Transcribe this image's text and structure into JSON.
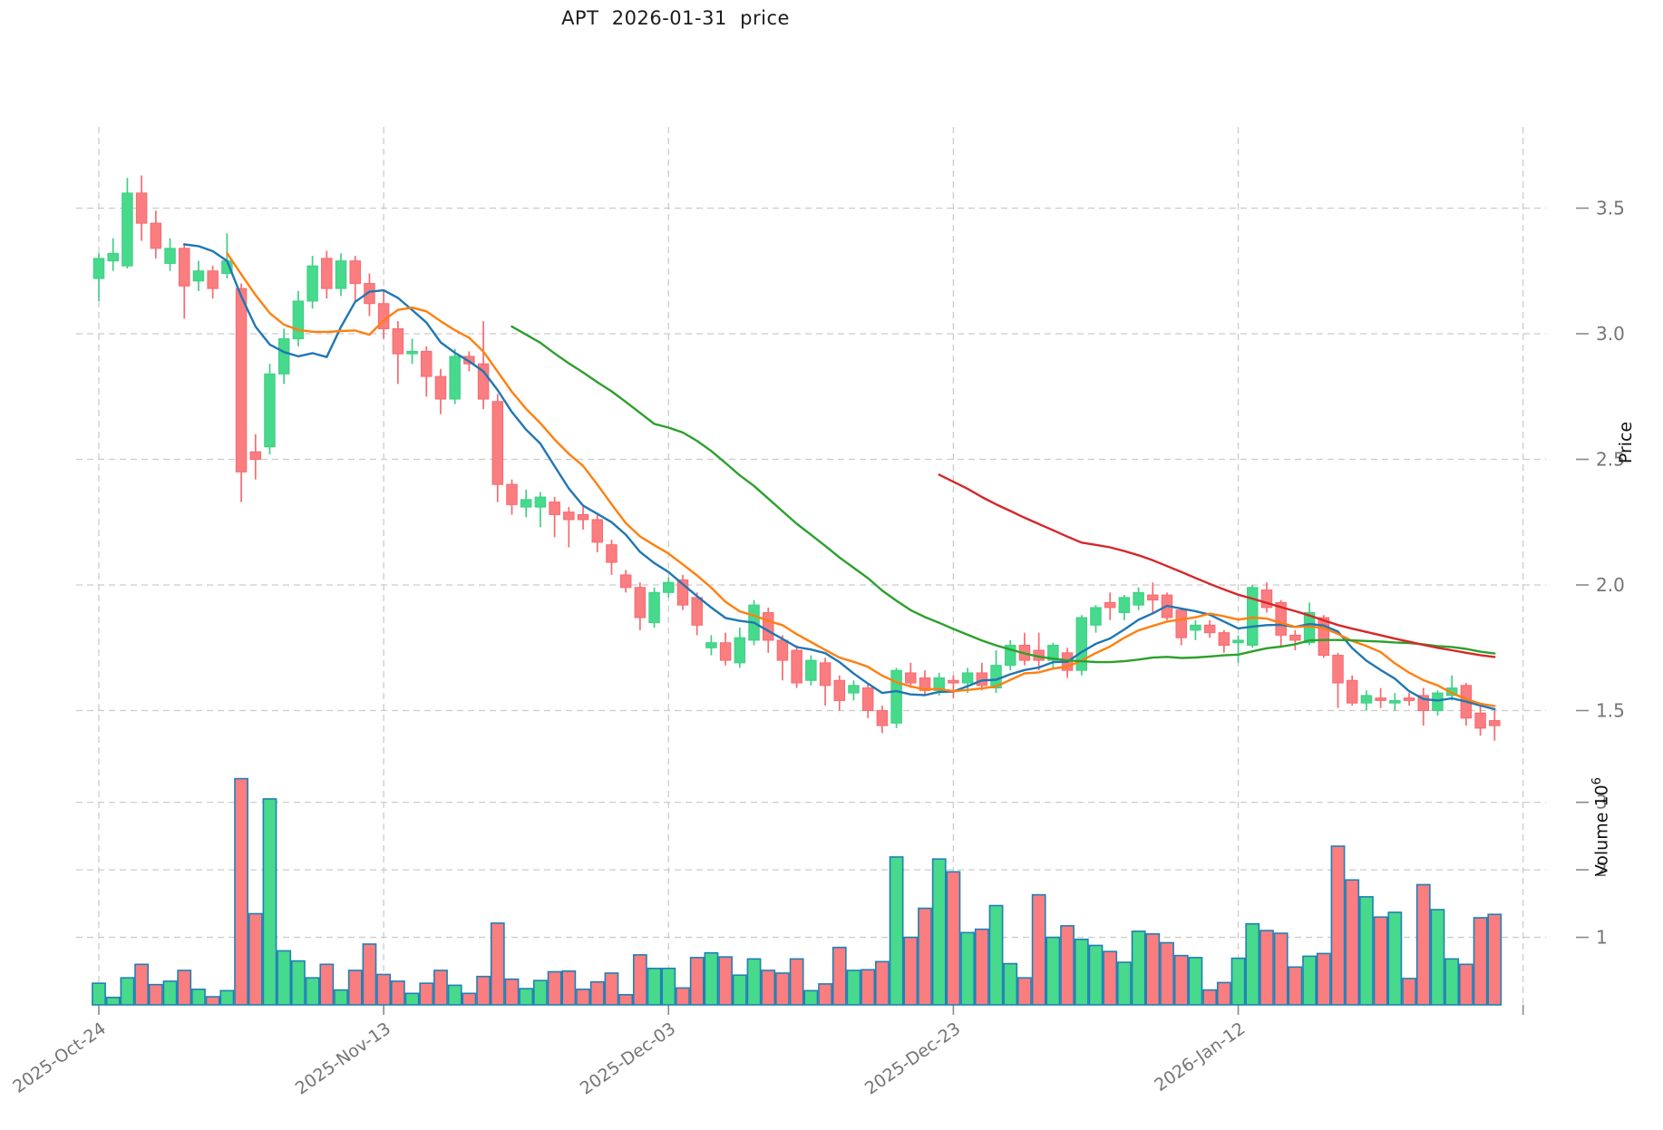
{
  "title": "APT  2026-01-31  price",
  "axes": {
    "price_label": "Price",
    "volume_label": "Volume",
    "volume_unit_base": "10",
    "volume_unit_exp": "6"
  },
  "chart_data": {
    "type": "candlestick",
    "title": "APT  2026-01-31  price",
    "ylabel": "Price",
    "ylabel2": "Volume 10^6",
    "grid": true,
    "price_ylim": [
      1.24,
      3.82
    ],
    "volume_ylim": [
      0,
      5.05
    ],
    "price_ticks": [
      {
        "value": 3.5,
        "label": "3.5"
      },
      {
        "value": 3.0,
        "label": "3.0"
      },
      {
        "value": 2.5,
        "label": "2.5"
      },
      {
        "value": 2.0,
        "label": "2.0"
      },
      {
        "value": 1.5,
        "label": "1.5"
      }
    ],
    "volume_ticks": [
      {
        "value": 3,
        "label": "3"
      },
      {
        "value": 2,
        "label": "2"
      },
      {
        "value": 1,
        "label": "1"
      }
    ],
    "x_ticks": [
      {
        "index": 0,
        "label": "2025-Oct-24"
      },
      {
        "index": 20,
        "label": "2025-Nov-13"
      },
      {
        "index": 40,
        "label": "2025-Dec-03"
      },
      {
        "index": 60,
        "label": "2025-Dec-23"
      },
      {
        "index": 80,
        "label": "2026-Jan-12"
      },
      {
        "index": 100,
        "label": ""
      }
    ],
    "moving_averages": [
      {
        "window": 7,
        "color": "#1f77b4"
      },
      {
        "window": 10,
        "color": "#ff7f0e"
      },
      {
        "window": 30,
        "color": "#2ca02c"
      },
      {
        "window": 60,
        "color": "#d62728"
      }
    ],
    "colors": {
      "up": "#47d98c",
      "down": "#fa7d80",
      "up_wick": "#3fcf84",
      "down_wick": "#f8696f",
      "volume_edge": "#2080b5",
      "grid": "#cccccc",
      "tick_text": "#757575",
      "title_text": "#1c1c1c"
    },
    "candles_format": [
      "open",
      "high",
      "low",
      "close",
      "volume_millions"
    ],
    "candles": [
      [
        3.22,
        3.32,
        3.13,
        3.3,
        0.32
      ],
      [
        3.29,
        3.38,
        3.25,
        3.32,
        0.11
      ],
      [
        3.27,
        3.62,
        3.26,
        3.56,
        0.4
      ],
      [
        3.56,
        3.63,
        3.37,
        3.44,
        0.6
      ],
      [
        3.44,
        3.49,
        3.3,
        3.34,
        0.3
      ],
      [
        3.28,
        3.38,
        3.25,
        3.34,
        0.35
      ],
      [
        3.34,
        3.36,
        3.06,
        3.19,
        0.51
      ],
      [
        3.21,
        3.29,
        3.17,
        3.25,
        0.23
      ],
      [
        3.25,
        3.27,
        3.14,
        3.18,
        0.12
      ],
      [
        3.24,
        3.4,
        3.22,
        3.29,
        0.21
      ],
      [
        3.18,
        3.2,
        2.33,
        2.45,
        3.35
      ],
      [
        2.53,
        2.6,
        2.42,
        2.5,
        1.35
      ],
      [
        2.55,
        2.88,
        2.52,
        2.84,
        3.05
      ],
      [
        2.84,
        3.02,
        2.8,
        2.98,
        0.8
      ],
      [
        2.98,
        3.17,
        2.95,
        3.13,
        0.65
      ],
      [
        3.13,
        3.31,
        3.1,
        3.27,
        0.4
      ],
      [
        3.3,
        3.33,
        3.14,
        3.18,
        0.6
      ],
      [
        3.18,
        3.32,
        3.15,
        3.29,
        0.22
      ],
      [
        3.29,
        3.31,
        3.13,
        3.2,
        0.51
      ],
      [
        3.2,
        3.24,
        3.07,
        3.12,
        0.9
      ],
      [
        3.12,
        3.17,
        2.98,
        3.02,
        0.45
      ],
      [
        3.02,
        3.05,
        2.8,
        2.92,
        0.35
      ],
      [
        2.92,
        2.98,
        2.88,
        2.93,
        0.17
      ],
      [
        2.93,
        2.95,
        2.75,
        2.83,
        0.32
      ],
      [
        2.83,
        2.86,
        2.68,
        2.74,
        0.51
      ],
      [
        2.74,
        2.94,
        2.72,
        2.91,
        0.29
      ],
      [
        2.91,
        2.93,
        2.85,
        2.88,
        0.17
      ],
      [
        2.88,
        3.05,
        2.7,
        2.74,
        0.42
      ],
      [
        2.73,
        2.76,
        2.33,
        2.4,
        1.21
      ],
      [
        2.4,
        2.42,
        2.28,
        2.32,
        0.38
      ],
      [
        2.31,
        2.38,
        2.27,
        2.34,
        0.24
      ],
      [
        2.31,
        2.37,
        2.23,
        2.35,
        0.36
      ],
      [
        2.33,
        2.35,
        2.19,
        2.28,
        0.49
      ],
      [
        2.29,
        2.31,
        2.15,
        2.26,
        0.5
      ],
      [
        2.28,
        2.32,
        2.22,
        2.26,
        0.23
      ],
      [
        2.26,
        2.28,
        2.13,
        2.17,
        0.34
      ],
      [
        2.16,
        2.18,
        2.04,
        2.09,
        0.47
      ],
      [
        2.04,
        2.06,
        1.97,
        1.99,
        0.15
      ],
      [
        1.99,
        2.01,
        1.82,
        1.87,
        0.74
      ],
      [
        1.85,
        1.99,
        1.83,
        1.97,
        0.54
      ],
      [
        1.97,
        2.03,
        1.95,
        2.01,
        0.54
      ],
      [
        2.02,
        2.04,
        1.9,
        1.92,
        0.25
      ],
      [
        1.95,
        1.97,
        1.8,
        1.84,
        0.7
      ],
      [
        1.75,
        1.8,
        1.72,
        1.77,
        0.77
      ],
      [
        1.77,
        1.81,
        1.68,
        1.7,
        0.71
      ],
      [
        1.69,
        1.83,
        1.67,
        1.79,
        0.44
      ],
      [
        1.78,
        1.94,
        1.76,
        1.92,
        0.68
      ],
      [
        1.89,
        1.91,
        1.73,
        1.78,
        0.51
      ],
      [
        1.78,
        1.8,
        1.62,
        1.7,
        0.47
      ],
      [
        1.74,
        1.76,
        1.59,
        1.61,
        0.68
      ],
      [
        1.62,
        1.72,
        1.6,
        1.7,
        0.21
      ],
      [
        1.69,
        1.71,
        1.52,
        1.6,
        0.31
      ],
      [
        1.62,
        1.64,
        1.5,
        1.54,
        0.85
      ],
      [
        1.57,
        1.62,
        1.54,
        1.6,
        0.51
      ],
      [
        1.59,
        1.61,
        1.47,
        1.5,
        0.52
      ],
      [
        1.5,
        1.52,
        1.41,
        1.44,
        0.64
      ],
      [
        1.45,
        1.67,
        1.43,
        1.66,
        2.19
      ],
      [
        1.65,
        1.69,
        1.59,
        1.61,
        1.0
      ],
      [
        1.63,
        1.66,
        1.56,
        1.58,
        1.43
      ],
      [
        1.58,
        1.65,
        1.56,
        1.63,
        2.16
      ],
      [
        1.62,
        1.64,
        1.55,
        1.61,
        1.97
      ],
      [
        1.61,
        1.67,
        1.57,
        1.65,
        1.07
      ],
      [
        1.65,
        1.69,
        1.58,
        1.6,
        1.12
      ],
      [
        1.59,
        1.74,
        1.57,
        1.68,
        1.47
      ],
      [
        1.68,
        1.78,
        1.66,
        1.76,
        0.61
      ],
      [
        1.76,
        1.81,
        1.68,
        1.7,
        0.4
      ],
      [
        1.74,
        1.81,
        1.66,
        1.7,
        1.63
      ],
      [
        1.7,
        1.77,
        1.67,
        1.76,
        1.0
      ],
      [
        1.73,
        1.75,
        1.63,
        1.66,
        1.17
      ],
      [
        1.66,
        1.88,
        1.64,
        1.87,
        0.97
      ],
      [
        1.84,
        1.92,
        1.81,
        1.91,
        0.88
      ],
      [
        1.93,
        1.97,
        1.86,
        1.91,
        0.79
      ],
      [
        1.89,
        1.96,
        1.86,
        1.95,
        0.63
      ],
      [
        1.92,
        1.99,
        1.9,
        1.97,
        1.09
      ],
      [
        1.96,
        2.01,
        1.89,
        1.94,
        1.05
      ],
      [
        1.96,
        1.97,
        1.86,
        1.87,
        0.92
      ],
      [
        1.9,
        1.91,
        1.76,
        1.79,
        0.73
      ],
      [
        1.82,
        1.86,
        1.78,
        1.84,
        0.7
      ],
      [
        1.84,
        1.86,
        1.79,
        1.81,
        0.22
      ],
      [
        1.81,
        1.82,
        1.73,
        1.76,
        0.33
      ],
      [
        1.77,
        1.8,
        1.69,
        1.78,
        0.69
      ],
      [
        1.76,
        2.0,
        1.75,
        1.99,
        1.2
      ],
      [
        1.98,
        2.01,
        1.89,
        1.91,
        1.1
      ],
      [
        1.93,
        1.94,
        1.75,
        1.8,
        1.06
      ],
      [
        1.8,
        1.82,
        1.74,
        1.78,
        0.56
      ],
      [
        1.77,
        1.93,
        1.76,
        1.89,
        0.72
      ],
      [
        1.87,
        1.88,
        1.71,
        1.72,
        0.76
      ],
      [
        1.72,
        1.73,
        1.51,
        1.61,
        2.35
      ],
      [
        1.62,
        1.64,
        1.52,
        1.53,
        1.85
      ],
      [
        1.53,
        1.58,
        1.5,
        1.56,
        1.6
      ],
      [
        1.55,
        1.59,
        1.51,
        1.54,
        1.3
      ],
      [
        1.53,
        1.57,
        1.5,
        1.54,
        1.37
      ],
      [
        1.55,
        1.57,
        1.52,
        1.54,
        0.39
      ],
      [
        1.56,
        1.59,
        1.44,
        1.5,
        1.78
      ],
      [
        1.5,
        1.58,
        1.48,
        1.57,
        1.41
      ],
      [
        1.56,
        1.64,
        1.54,
        1.59,
        0.68
      ],
      [
        1.6,
        1.61,
        1.44,
        1.47,
        0.6
      ],
      [
        1.49,
        1.52,
        1.4,
        1.43,
        1.29
      ],
      [
        1.46,
        1.5,
        1.38,
        1.44,
        1.34
      ]
    ]
  }
}
